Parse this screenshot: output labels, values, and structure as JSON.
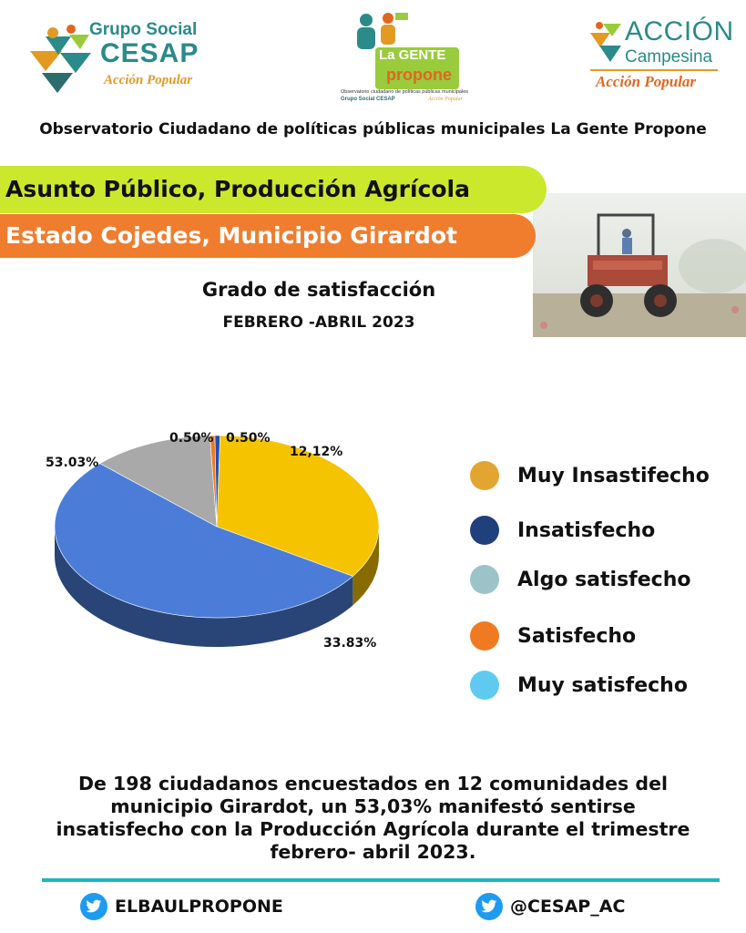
{
  "logos": {
    "cesap": {
      "line1": "Grupo Social",
      "line2": "CESAP",
      "line3": "Acción Popular"
    },
    "gente": {
      "line1": "La GENTE",
      "line2": "propone",
      "line3": "Observatorio ciudadano de políticas públicas municipales",
      "line4": "Grupo Social CESAP",
      "line5": "Acción Popular"
    },
    "accion": {
      "line1": "ACCIÓN",
      "line2": "Campesina",
      "line3": "Acción Popular"
    }
  },
  "header": {
    "observatorio": "Observatorio Ciudadano de políticas públicas municipales La Gente Propone",
    "banner1": "Asunto Público, Producción Agrícola",
    "banner2": "Estado Cojedes, Municipio Girardot"
  },
  "colors": {
    "banner1": "#cce82c",
    "banner2": "#f07d2e",
    "divider": "#1fb6ba"
  },
  "chart_data": {
    "type": "pie",
    "title": "Grado de satisfacción",
    "subtitle": "FEBRERO -ABRIL 2023",
    "slices": [
      {
        "label": "Muy Insastifecho",
        "value": 33.83,
        "display": "33.83%",
        "color": "#f5c300",
        "legend_color": "#e3a531"
      },
      {
        "label": "Insatisfecho",
        "value": 53.03,
        "display": "53.03%",
        "color": "#4b7dd8",
        "legend_color": "#1f3f7d"
      },
      {
        "label": "Algo satisfecho",
        "value": 12.12,
        "display": "12,12%",
        "color": "#a9a9a9",
        "legend_color": "#9cc3c8"
      },
      {
        "label": "Satisfecho",
        "value": 0.5,
        "display": "0.50%",
        "color": "#f07a22",
        "legend_color": "#f07a22"
      },
      {
        "label": "Muy satisfecho",
        "value": 0.5,
        "display": "0.50%",
        "color": "#1f4fb0",
        "legend_color": "#5fcaf0"
      }
    ],
    "legend": [
      "Muy Insastifecho",
      "Insatisfecho",
      "Algo satisfecho",
      "Satisfecho",
      "Muy satisfecho"
    ]
  },
  "summary": "De 198 ciudadanos encuestados en 12 comunidades del municipio Girardot, un 53,03% manifestó sentirse insatisfecho con la Producción Agrícola durante el trimestre febrero- abril 2023.",
  "social": {
    "left": {
      "icon": "twitter-icon",
      "handle": "ELBAULPROPONE"
    },
    "right": {
      "icon": "twitter-icon",
      "handle": "@CESAP_AC"
    }
  }
}
